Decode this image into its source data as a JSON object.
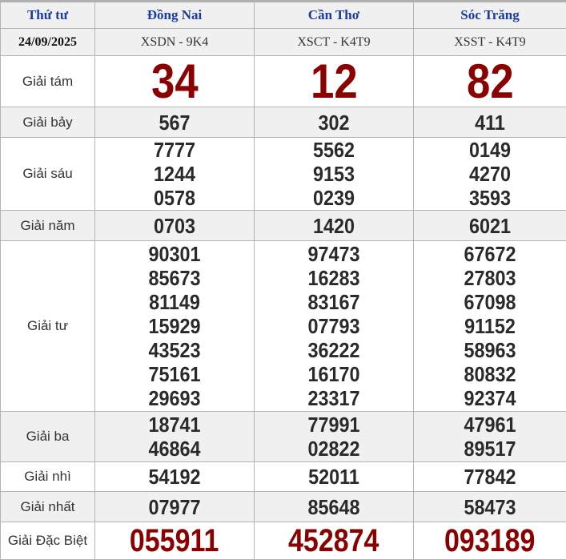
{
  "header": {
    "day": "Thứ tư",
    "provinces": [
      "Đồng Nai",
      "Cần Thơ",
      "Sóc Trăng"
    ]
  },
  "date_row": {
    "date": "24/09/2025",
    "codes": [
      "XSDN - 9K4",
      "XSCT - K4T9",
      "XSST - K4T9"
    ]
  },
  "prizes": [
    {
      "label": "Giải tám",
      "values": [
        [
          "34"
        ],
        [
          "12"
        ],
        [
          "82"
        ]
      ]
    },
    {
      "label": "Giải bảy",
      "values": [
        [
          "567"
        ],
        [
          "302"
        ],
        [
          "411"
        ]
      ]
    },
    {
      "label": "Giải sáu",
      "values": [
        [
          "7777",
          "1244",
          "0578"
        ],
        [
          "5562",
          "9153",
          "0239"
        ],
        [
          "0149",
          "4270",
          "3593"
        ]
      ]
    },
    {
      "label": "Giải năm",
      "values": [
        [
          "0703"
        ],
        [
          "1420"
        ],
        [
          "6021"
        ]
      ]
    },
    {
      "label": "Giải tư",
      "values": [
        [
          "90301",
          "85673",
          "81149",
          "15929",
          "43523",
          "75161",
          "29693"
        ],
        [
          "97473",
          "16283",
          "83167",
          "07793",
          "36222",
          "16170",
          "23317"
        ],
        [
          "67672",
          "27803",
          "67098",
          "91152",
          "58963",
          "80832",
          "92374"
        ]
      ]
    },
    {
      "label": "Giải ba",
      "values": [
        [
          "18741",
          "46864"
        ],
        [
          "77991",
          "02822"
        ],
        [
          "47961",
          "89517"
        ]
      ]
    },
    {
      "label": "Giải nhì",
      "values": [
        [
          "54192"
        ],
        [
          "52011"
        ],
        [
          "77842"
        ]
      ]
    },
    {
      "label": "Giải nhất",
      "values": [
        [
          "07977"
        ],
        [
          "85648"
        ],
        [
          "58473"
        ]
      ]
    },
    {
      "label": "Giải Đặc Biệt",
      "values": [
        [
          "055911"
        ],
        [
          "452874"
        ],
        [
          "093189"
        ]
      ]
    }
  ],
  "colors": {
    "header_text": "#1a3c9c",
    "highlight": "#8b0000"
  }
}
